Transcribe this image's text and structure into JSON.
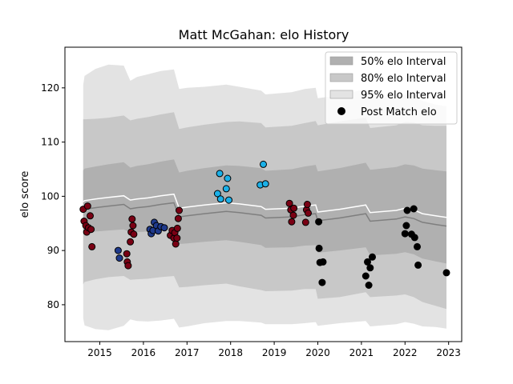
{
  "chart_data": {
    "type": "scatter",
    "title": "Matt McGahan: elo History",
    "xlabel": "",
    "ylabel": "elo score",
    "xlim": [
      2014.2,
      2023.3
    ],
    "ylim": [
      73.2,
      127.5
    ],
    "x_ticks": [
      2015,
      2016,
      2017,
      2018,
      2019,
      2020,
      2021,
      2022,
      2023
    ],
    "y_ticks": [
      80,
      90,
      100,
      110,
      120
    ],
    "grid": false,
    "legend_position": "top-right",
    "legend": [
      {
        "label": "50% elo Interval",
        "kind": "band",
        "color": "#b0b0b0"
      },
      {
        "label": "80% elo Interval",
        "kind": "band",
        "color": "#c8c8c8"
      },
      {
        "label": "95% elo Interval",
        "kind": "band",
        "color": "#e3e3e3"
      },
      {
        "label": "Post Match elo",
        "kind": "marker",
        "color": "#000000"
      }
    ],
    "bands": {
      "x": [
        2014.62,
        2014.65,
        2014.9,
        2015.2,
        2015.55,
        2015.7,
        2015.85,
        2016.1,
        2016.4,
        2016.7,
        2016.82,
        2017.0,
        2017.4,
        2017.9,
        2018.2,
        2018.7,
        2018.8,
        2019.4,
        2019.7,
        2019.95,
        2020.0,
        2020.5,
        2021.1,
        2021.2,
        2021.8,
        2022.0,
        2022.2,
        2022.4,
        2022.7,
        2022.95
      ],
      "center": [
        99.0,
        99.2,
        99.5,
        99.8,
        100.1,
        99.3,
        99.5,
        99.7,
        100.1,
        100.4,
        97.8,
        98.0,
        98.4,
        98.8,
        98.6,
        98.1,
        97.6,
        97.8,
        98.2,
        98.4,
        97.1,
        97.6,
        98.4,
        97.0,
        97.4,
        97.8,
        97.5,
        96.8,
        96.4,
        96.1
      ],
      "p50_half": [
        5.8,
        5.9,
        6.0,
        6.1,
        6.2,
        6.0,
        6.1,
        6.2,
        6.3,
        6.4,
        6.6,
        6.7,
        6.8,
        6.9,
        7.0,
        7.1,
        7.1,
        7.2,
        7.3,
        7.4,
        7.5,
        7.6,
        7.8,
        7.9,
        8.0,
        8.1,
        8.2,
        8.3,
        8.4,
        8.5
      ],
      "p80_half": [
        15.2,
        15.0,
        14.8,
        14.7,
        14.8,
        14.7,
        14.8,
        14.9,
        15.0,
        15.1,
        14.6,
        14.7,
        14.8,
        14.9,
        15.2,
        15.4,
        15.1,
        15.2,
        15.3,
        15.5,
        16.0,
        16.2,
        16.1,
        15.6,
        15.7,
        15.9,
        16.1,
        16.3,
        16.6,
        16.9
      ],
      "p95_half": [
        21.5,
        23.0,
        24.0,
        24.5,
        24.0,
        22.0,
        22.5,
        22.8,
        23.0,
        23.0,
        22.0,
        22.0,
        21.8,
        21.8,
        21.6,
        21.4,
        21.2,
        21.4,
        21.6,
        21.6,
        21.0,
        21.0,
        21.4,
        21.0,
        21.0,
        21.0,
        21.0,
        20.8,
        20.5,
        20.5
      ]
    },
    "series": [
      {
        "color": "#7a0014",
        "points": [
          [
            2014.62,
            97.6
          ],
          [
            2014.64,
            95.4
          ],
          [
            2014.68,
            94.6
          ],
          [
            2014.7,
            93.4
          ],
          [
            2014.72,
            98.2
          ],
          [
            2014.74,
            94.2
          ],
          [
            2014.78,
            96.4
          ],
          [
            2014.8,
            93.9
          ],
          [
            2014.82,
            90.7
          ],
          [
            2015.62,
            89.4
          ],
          [
            2015.63,
            87.9
          ],
          [
            2015.65,
            87.2
          ],
          [
            2015.7,
            91.6
          ],
          [
            2015.72,
            93.4
          ],
          [
            2015.74,
            95.8
          ],
          [
            2015.76,
            94.6
          ],
          [
            2015.78,
            93.0
          ],
          [
            2016.62,
            92.8
          ],
          [
            2016.66,
            93.7
          ],
          [
            2016.7,
            92.3
          ],
          [
            2016.72,
            93.3
          ],
          [
            2016.74,
            91.2
          ],
          [
            2016.77,
            92.3
          ],
          [
            2016.78,
            94.1
          ],
          [
            2016.8,
            95.9
          ],
          [
            2016.82,
            97.4
          ]
        ]
      },
      {
        "color": "#1f3a8c",
        "points": [
          [
            2015.42,
            90.0
          ],
          [
            2015.45,
            88.6
          ],
          [
            2016.15,
            93.9
          ],
          [
            2016.18,
            93.1
          ],
          [
            2016.22,
            93.7
          ],
          [
            2016.25,
            95.2
          ],
          [
            2016.3,
            94.6
          ],
          [
            2016.34,
            93.6
          ],
          [
            2016.4,
            94.4
          ],
          [
            2016.48,
            94.2
          ]
        ]
      },
      {
        "color": "#1ab0e8",
        "points": [
          [
            2017.7,
            100.5
          ],
          [
            2017.75,
            104.2
          ],
          [
            2017.77,
            99.5
          ],
          [
            2017.9,
            101.4
          ],
          [
            2017.93,
            103.3
          ],
          [
            2017.96,
            99.3
          ],
          [
            2018.68,
            102.1
          ],
          [
            2018.75,
            105.9
          ],
          [
            2018.8,
            102.3
          ]
        ]
      },
      {
        "color": "#7a0014",
        "points": [
          [
            2019.35,
            98.7
          ],
          [
            2019.38,
            97.5
          ],
          [
            2019.4,
            95.3
          ],
          [
            2019.44,
            96.5
          ],
          [
            2019.45,
            97.8
          ],
          [
            2019.72,
            95.2
          ],
          [
            2019.74,
            97.5
          ],
          [
            2019.76,
            98.5
          ],
          [
            2019.78,
            96.9
          ]
        ]
      },
      {
        "color": "#000000",
        "points": [
          [
            2020.02,
            95.3
          ],
          [
            2020.03,
            90.4
          ],
          [
            2020.05,
            87.8
          ],
          [
            2020.1,
            84.1
          ],
          [
            2020.12,
            87.9
          ],
          [
            2021.1,
            85.3
          ],
          [
            2021.14,
            87.9
          ],
          [
            2021.17,
            83.6
          ],
          [
            2021.2,
            86.8
          ],
          [
            2021.25,
            88.8
          ],
          [
            2022.0,
            93.1
          ],
          [
            2022.03,
            94.6
          ],
          [
            2022.05,
            97.4
          ],
          [
            2022.15,
            93.0
          ],
          [
            2022.2,
            97.7
          ],
          [
            2022.22,
            92.4
          ],
          [
            2022.28,
            90.7
          ],
          [
            2022.3,
            87.3
          ],
          [
            2022.95,
            85.9
          ]
        ]
      }
    ]
  }
}
